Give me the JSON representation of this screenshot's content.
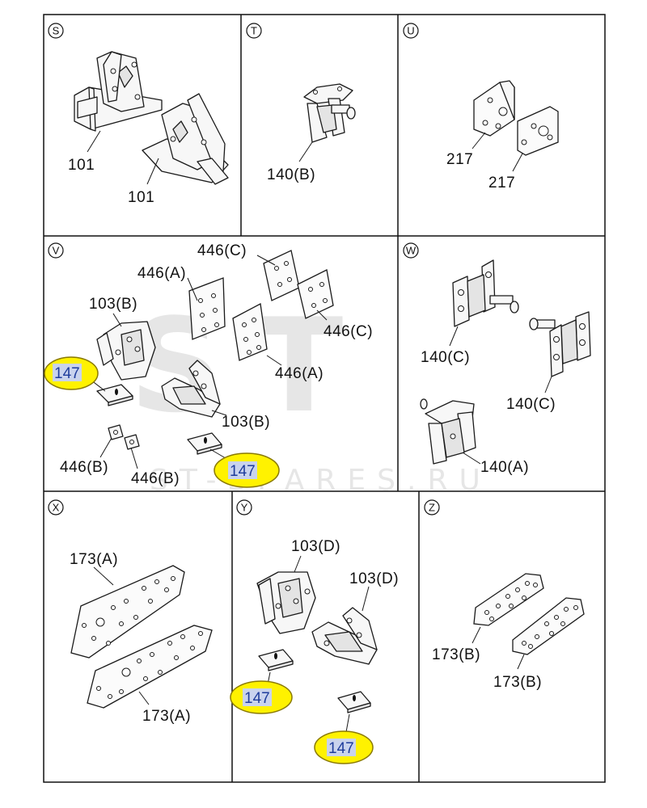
{
  "sections": {
    "S": {
      "letter": "S",
      "labels": [
        "101",
        "101"
      ]
    },
    "T": {
      "letter": "T",
      "labels": [
        "140(B)"
      ]
    },
    "U": {
      "letter": "U",
      "labels": [
        "217",
        "217"
      ]
    },
    "V": {
      "letter": "V",
      "labels": [
        "446(C)",
        "446(A)",
        "103(B)",
        "446(C)",
        "446(A)",
        "147",
        "103(B)",
        "446(B)",
        "446(B)",
        "147"
      ]
    },
    "W": {
      "letter": "W",
      "labels": [
        "140(C)",
        "140(C)",
        "140(A)"
      ]
    },
    "X": {
      "letter": "X",
      "labels": [
        "173(A)",
        "173(A)"
      ]
    },
    "Y": {
      "letter": "Y",
      "labels": [
        "103(D)",
        "103(D)",
        "147",
        "147"
      ]
    },
    "Z": {
      "letter": "Z",
      "labels": [
        "173(B)",
        "173(B)"
      ]
    }
  },
  "watermark": {
    "logo": "ST",
    "text": "ST-SPARES.RU"
  },
  "colors": {
    "highlight": "#fff200",
    "highlight_text": "#1f3d9c",
    "line": "#1a1a1a"
  }
}
